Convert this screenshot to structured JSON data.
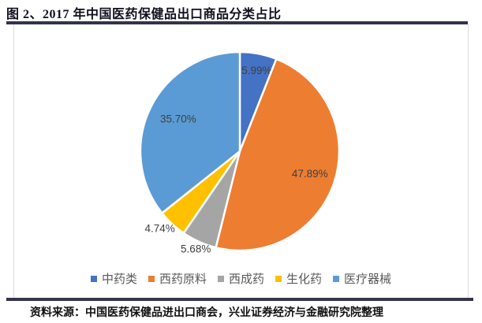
{
  "header": {
    "title": "图 2、2017 年中国医药保健品出口商品分类占比"
  },
  "footer": {
    "source": "资料来源：中国医药保健品进出口商会，兴业证券经济与金融研究院整理"
  },
  "colors": {
    "rule_navy": "#33334e",
    "frame_border": "#dcdcdc",
    "slice_label_text": "#404040",
    "legend_text": "#595959"
  },
  "chart_data": {
    "type": "pie",
    "title": "2017 年中国医药保健品出口商品分类占比",
    "start_angle_deg": 0,
    "direction": "clockwise",
    "legend_position": "bottom",
    "slice_separator": "#ffffff",
    "slices": [
      {
        "label": "中药类",
        "value": 5.99,
        "display": "5.99%",
        "color": "#4472c4",
        "label_radius": 0.83,
        "label_angle_offset": 1
      },
      {
        "label": "西药原料",
        "value": 47.89,
        "display": "47.89%",
        "color": "#ed7d31",
        "label_radius": 0.74,
        "label_angle_offset": 0
      },
      {
        "label": "西成药",
        "value": 5.68,
        "display": "5.68%",
        "color": "#a5a5a5",
        "label_radius": 1.08,
        "label_angle_offset": 0
      },
      {
        "label": "生化药",
        "value": 4.74,
        "display": "4.74%",
        "color": "#ffc000",
        "label_radius": 1.12,
        "label_angle_offset": 3
      },
      {
        "label": "医疗器械",
        "value": 35.7,
        "display": "35.70%",
        "color": "#5b9bd5",
        "label_radius": 0.7,
        "label_angle_offset": 2
      }
    ]
  }
}
